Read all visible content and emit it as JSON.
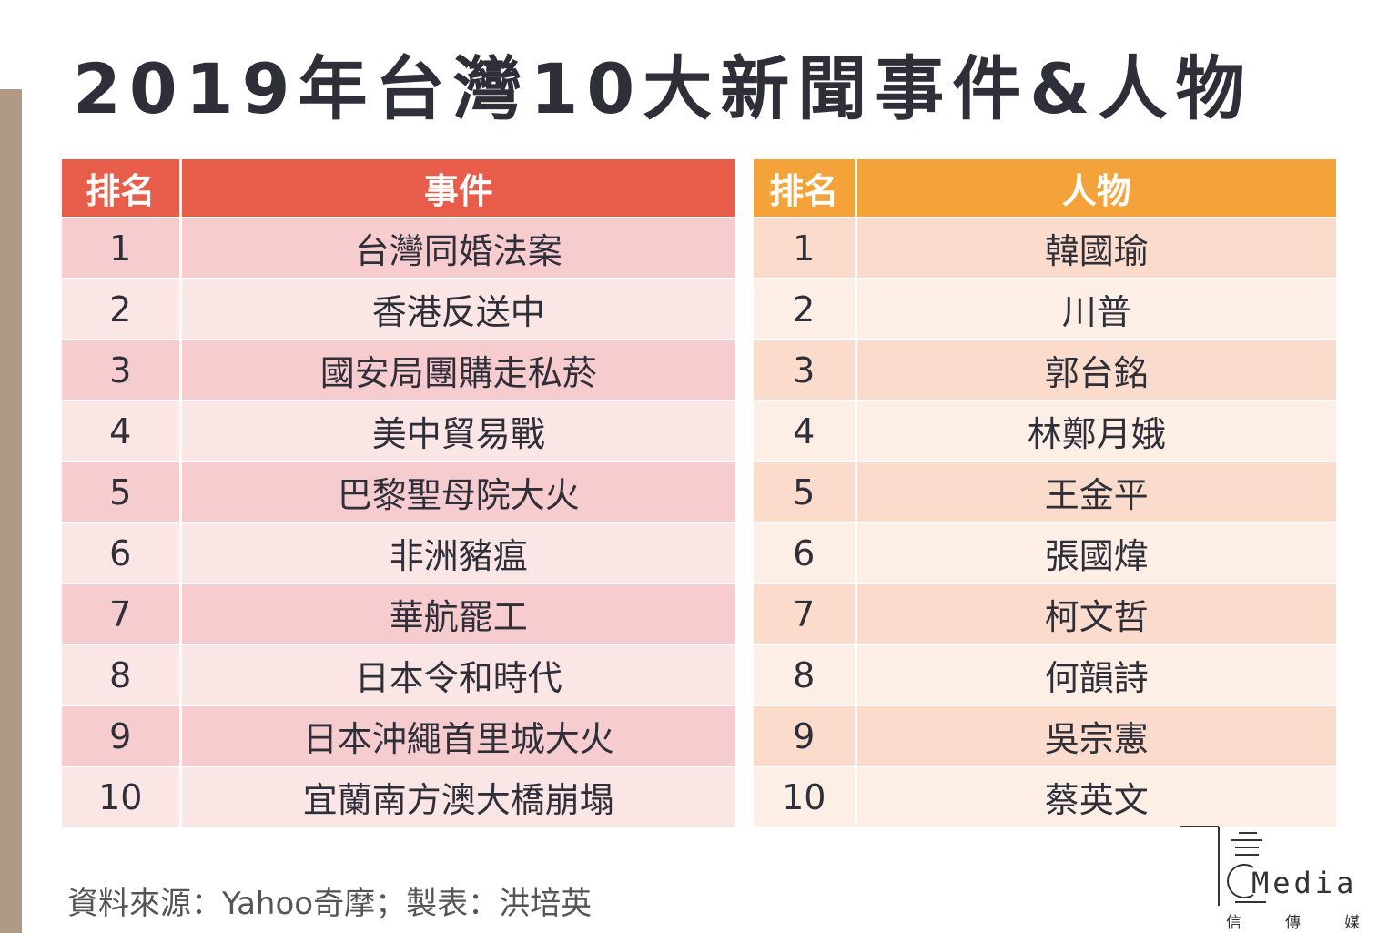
{
  "title": "2019年台灣10大新聞事件&人物",
  "events_table": {
    "rank_header": "排名",
    "item_header": "事件",
    "rows": [
      {
        "rank": "1",
        "item": "台灣同婚法案"
      },
      {
        "rank": "2",
        "item": "香港反送中"
      },
      {
        "rank": "3",
        "item": "國安局團購走私菸"
      },
      {
        "rank": "4",
        "item": "美中貿易戰"
      },
      {
        "rank": "5",
        "item": "巴黎聖母院大火"
      },
      {
        "rank": "6",
        "item": "非洲豬瘟"
      },
      {
        "rank": "7",
        "item": "華航罷工"
      },
      {
        "rank": "8",
        "item": "日本令和時代"
      },
      {
        "rank": "9",
        "item": "日本沖繩首里城大火"
      },
      {
        "rank": "10",
        "item": "宜蘭南方澳大橋崩塌"
      }
    ]
  },
  "people_table": {
    "rank_header": "排名",
    "item_header": "人物",
    "rows": [
      {
        "rank": "1",
        "item": "韓國瑜"
      },
      {
        "rank": "2",
        "item": "川普"
      },
      {
        "rank": "3",
        "item": "郭台銘"
      },
      {
        "rank": "4",
        "item": "林鄭月娥"
      },
      {
        "rank": "5",
        "item": "王金平"
      },
      {
        "rank": "6",
        "item": "張國煒"
      },
      {
        "rank": "7",
        "item": "柯文哲"
      },
      {
        "rank": "8",
        "item": "何韻詩"
      },
      {
        "rank": "9",
        "item": "吳宗憲"
      },
      {
        "rank": "10",
        "item": "蔡英文"
      }
    ]
  },
  "source_note": "資料來源：Yahoo奇摩；製表：洪培英",
  "logo": {
    "wordmark": "Media",
    "subtitle": "信傳媒"
  },
  "colors": {
    "events_header": "#e85c4a",
    "people_header": "#f4a33a",
    "left_bar": "#b09a86"
  }
}
